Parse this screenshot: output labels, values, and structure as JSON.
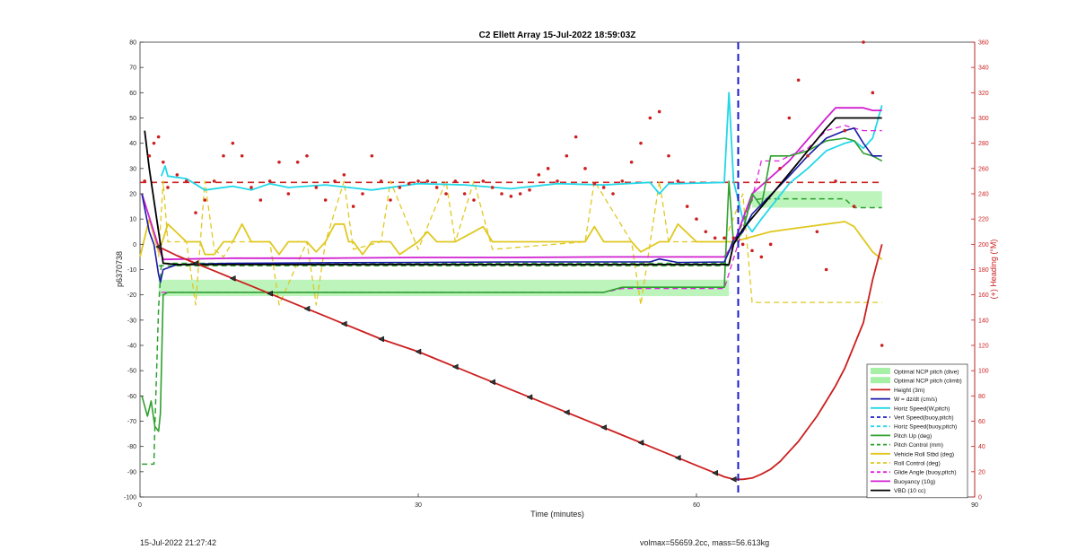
{
  "footer": {
    "timestamp": "15-Jul-2022 21:27:42",
    "mass_info": "volmax=55659.2cc, mass=56.613kg"
  },
  "chart_data": {
    "type": "line",
    "title": "C2 Ellett Array 15-Jul-2022 18:59:03Z",
    "xlabel": "Time (minutes)",
    "ylabel": "p6370738",
    "y2label": "(+) Heading (°M)",
    "xlim": [
      0,
      90
    ],
    "ylim": [
      -100,
      80
    ],
    "y2lim": [
      0,
      360
    ],
    "xticks": [
      0,
      30,
      60,
      90
    ],
    "yticks": [
      -100,
      -90,
      -80,
      -70,
      -60,
      -50,
      -40,
      -30,
      -20,
      -10,
      0,
      10,
      20,
      30,
      40,
      50,
      60,
      70,
      80
    ],
    "y2ticks": [
      0,
      20,
      40,
      60,
      80,
      100,
      120,
      140,
      160,
      180,
      200,
      220,
      240,
      260,
      280,
      300,
      320,
      340,
      360
    ],
    "grid": false,
    "legend_position": "bottom-right",
    "colors": {
      "ncp_band": "#a6f0a6",
      "height": "#cc1f1f",
      "w": "#1a1aa6",
      "horiz": "#22d8e8",
      "pitch": "#2ea02e",
      "roll": "#e0c820",
      "glide": "#e020e0",
      "buoy": "#d020d0",
      "vbd": "#000000",
      "heading": "#cc1f1f",
      "vline": "#1a1acc"
    },
    "bands": [
      {
        "name": "Optimal NCP pitch (dive)",
        "x": [
          2,
          63.5
        ],
        "y": [
          -20.5,
          -14
        ]
      },
      {
        "name": "Optimal NCP pitch (climb)",
        "x": [
          66,
          80
        ],
        "y": [
          14.5,
          21
        ]
      }
    ],
    "vline_x": 64.5,
    "legend": [
      "Optimal NCP pitch (dive)",
      "Optimal NCP pitch (climb)",
      "Height (3m)",
      "W = dz/dt (cm/s)",
      "Horiz Speed(W,pitch)",
      "Vert Speed(buoy,pitch)",
      "Horiz Speed(buoy,pitch)",
      "Pitch Up (deg)",
      "Pitch Control (mm)",
      "Vehicle Roll Stbd (deg)",
      "Roll Control (deg)",
      "Glide Angle (buoy,pitch)",
      "Buoyancy (10g)",
      "VBD (10 cc)"
    ],
    "height_series": {
      "x": [
        2,
        4,
        6,
        8,
        10,
        12,
        14,
        16,
        18,
        20,
        22,
        24,
        26,
        28,
        30,
        32,
        34,
        36,
        38,
        40,
        42,
        44,
        46,
        48,
        50,
        52,
        54,
        56,
        58,
        60,
        62,
        63,
        64,
        65,
        66,
        67,
        68,
        69,
        70,
        71,
        72,
        73,
        74,
        75,
        76,
        77,
        78,
        79,
        80
      ],
      "y": [
        -1,
        -4.5,
        -7.5,
        -10.5,
        -13.5,
        -16.5,
        -19.5,
        -22.5,
        -25.5,
        -28.5,
        -31.5,
        -34.5,
        -37.5,
        -40,
        -42.5,
        -45.5,
        -48.5,
        -51.5,
        -54.5,
        -57.5,
        -60.5,
        -63.5,
        -66.5,
        -69.5,
        -72.5,
        -75.5,
        -78.5,
        -81.5,
        -84.5,
        -87.5,
        -90.5,
        -92,
        -93,
        -93,
        -92.5,
        -91,
        -89,
        -86,
        -82,
        -78,
        -73,
        -68,
        -62,
        -56,
        -49,
        -40,
        -31,
        -14,
        0
      ]
    },
    "w_series": {
      "x": [
        0.2,
        1,
        1.5,
        2,
        2.2,
        2.5,
        4,
        10,
        20,
        30,
        40,
        50,
        55,
        56,
        58,
        63,
        63.5,
        64,
        65,
        66,
        70,
        72,
        74,
        76,
        77,
        78,
        79,
        80
      ],
      "y": [
        20,
        5,
        0,
        -12,
        -15,
        -10,
        -8,
        -7.5,
        -7.3,
        -7.2,
        -7,
        -7,
        -7,
        -5.8,
        -7.2,
        -7,
        -3,
        2,
        5,
        12,
        27,
        35,
        42,
        45,
        46,
        40,
        35,
        35
      ]
    },
    "horiz_series": {
      "x": [
        2.3,
        2.7,
        3,
        5,
        7,
        10,
        12,
        14,
        16,
        20,
        25,
        30,
        35,
        40,
        45,
        50,
        55,
        56,
        57,
        58,
        63,
        63.5,
        64,
        65,
        66,
        67,
        70,
        72,
        74,
        76,
        77,
        78,
        79,
        80
      ],
      "y": [
        27,
        31,
        27,
        26,
        21.5,
        23,
        21.5,
        24,
        22.5,
        23.5,
        21.5,
        24,
        23.5,
        22,
        24,
        23.5,
        24.5,
        20,
        24,
        24,
        24.5,
        60,
        25,
        10,
        5,
        10,
        24,
        30,
        37,
        40,
        41,
        38,
        42,
        55
      ]
    },
    "pitch_series": {
      "x": [
        0.2,
        0.8,
        1.2,
        1.6,
        2,
        2.2,
        2.5,
        3,
        10,
        20,
        30,
        40,
        50,
        52,
        60,
        63,
        63.5,
        64,
        65,
        66,
        67,
        68,
        70,
        72,
        74,
        76,
        77,
        78,
        79,
        80
      ],
      "y": [
        -60,
        -68,
        -62,
        -72,
        -74,
        -67,
        -20,
        -19,
        -19,
        -19,
        -19,
        -19,
        -19,
        -17,
        -17,
        -17,
        25,
        0,
        5,
        20,
        15,
        35,
        35,
        37,
        41,
        42,
        41,
        36,
        35,
        33
      ]
    },
    "pitch_control_series": {
      "x": [
        0.2,
        1.5,
        1.6,
        2,
        2.3,
        63.5,
        64,
        66,
        67,
        76,
        77,
        80
      ],
      "y": [
        -87,
        -87,
        -73,
        -25,
        -7.5,
        -7.5,
        0,
        17.5,
        18,
        18,
        14.5,
        14.5
      ]
    },
    "glide_series": {
      "x": [
        2.3,
        10,
        20,
        30,
        40,
        50,
        52,
        63,
        66,
        67,
        69,
        70,
        72,
        74,
        76,
        77,
        78,
        79,
        80
      ],
      "y": [
        -19,
        -19,
        -19,
        -19,
        -19,
        -19,
        -17.5,
        -17.5,
        18,
        33,
        33,
        35,
        38,
        45,
        47,
        46,
        45,
        45,
        45
      ]
    },
    "buoy_series": {
      "x": [
        0.2,
        2,
        2.5,
        10,
        20,
        30,
        40,
        50,
        63,
        64,
        65,
        66,
        70,
        74,
        75,
        78,
        79,
        80
      ],
      "y": [
        20,
        -1,
        -6,
        -5.5,
        -5.5,
        -5.2,
        -5.2,
        -5,
        -5,
        0,
        10,
        20,
        33,
        50,
        54,
        54,
        53,
        53
      ]
    },
    "vbd_series": {
      "x": [
        0.5,
        1,
        2,
        2.5,
        4,
        10,
        30,
        50,
        63.5,
        64,
        65,
        70,
        74,
        75,
        80
      ],
      "y": [
        45,
        30,
        5,
        -7.5,
        -8,
        -8,
        -8,
        -8,
        -8,
        0,
        6,
        28,
        46,
        50,
        50
      ]
    },
    "roll_series": {
      "x": [
        0,
        1,
        2,
        2.5,
        3,
        5,
        6.5,
        7,
        8,
        9,
        10,
        11,
        12,
        14,
        15,
        16,
        17,
        18,
        19,
        20,
        21,
        22,
        22.5,
        23,
        24,
        25,
        26,
        27,
        28,
        30,
        31,
        32,
        33,
        34,
        36,
        37,
        38,
        40,
        45,
        48,
        49,
        50,
        52,
        53,
        54,
        56,
        57,
        58,
        60,
        63,
        64,
        66,
        68,
        70,
        72,
        74,
        76,
        77,
        78,
        79,
        80
      ],
      "y": [
        -5,
        10,
        -3,
        2,
        8,
        1,
        1,
        -4,
        -4,
        1,
        1,
        8,
        1,
        1,
        -4,
        1,
        1,
        1,
        -3,
        1,
        8,
        8,
        1,
        1,
        -4,
        1,
        1,
        1,
        -4,
        1,
        5,
        1,
        1,
        1,
        5,
        7,
        1,
        1,
        1,
        1,
        7,
        1,
        1,
        1,
        -3,
        1,
        1,
        8,
        1,
        1,
        1,
        3,
        5,
        6,
        7,
        8,
        9,
        7,
        2,
        -3,
        -6
      ]
    },
    "roll_control_series": {
      "x": [
        2,
        2.5,
        3,
        5,
        6,
        7,
        8,
        9,
        10,
        14,
        15,
        18,
        19,
        20,
        22,
        23,
        26,
        27,
        30,
        33,
        34,
        36,
        38,
        48,
        49,
        53,
        54,
        56,
        57,
        63,
        65,
        66,
        80
      ],
      "y": [
        -5,
        25,
        1,
        1,
        -24,
        25,
        -2,
        -5,
        1,
        1,
        -24,
        1,
        -24,
        1,
        25,
        -2,
        1,
        25,
        -2,
        25,
        1,
        25,
        -2,
        1,
        25,
        1,
        -24,
        25,
        1,
        1,
        20,
        -23,
        -23
      ]
    },
    "heading_series": {
      "x": [
        0.5,
        1,
        1.5,
        2,
        2.5,
        3,
        4,
        5,
        6,
        7,
        8,
        9,
        10,
        11,
        12,
        13,
        14,
        15,
        16,
        17,
        18,
        19,
        20,
        21,
        22,
        23,
        24,
        25,
        26,
        27,
        28,
        29,
        30,
        31,
        32,
        33,
        34,
        35,
        36,
        37,
        38,
        39,
        40,
        41,
        42,
        43,
        44,
        45,
        46,
        47,
        48,
        49,
        50,
        51,
        52,
        53,
        54,
        55,
        56,
        57,
        58,
        59,
        60,
        61,
        62,
        63,
        64,
        65,
        66,
        67,
        68,
        69,
        70,
        71,
        72,
        73,
        74,
        75,
        76,
        77,
        78,
        79,
        80
      ],
      "y": [
        250,
        270,
        280,
        285,
        265,
        245,
        255,
        250,
        225,
        235,
        250,
        270,
        280,
        270,
        245,
        235,
        250,
        265,
        240,
        265,
        270,
        245,
        235,
        250,
        255,
        230,
        240,
        270,
        250,
        235,
        245,
        248,
        250,
        250,
        245,
        240,
        250,
        240,
        235,
        250,
        245,
        240,
        238,
        240,
        243,
        255,
        260,
        250,
        270,
        285,
        260,
        248,
        245,
        240,
        250,
        265,
        280,
        300,
        305,
        270,
        250,
        230,
        220,
        210,
        205,
        205,
        205,
        200,
        195,
        190,
        200,
        260,
        300,
        330,
        270,
        210,
        180,
        250,
        290,
        230,
        360,
        320,
        120
      ]
    }
  }
}
